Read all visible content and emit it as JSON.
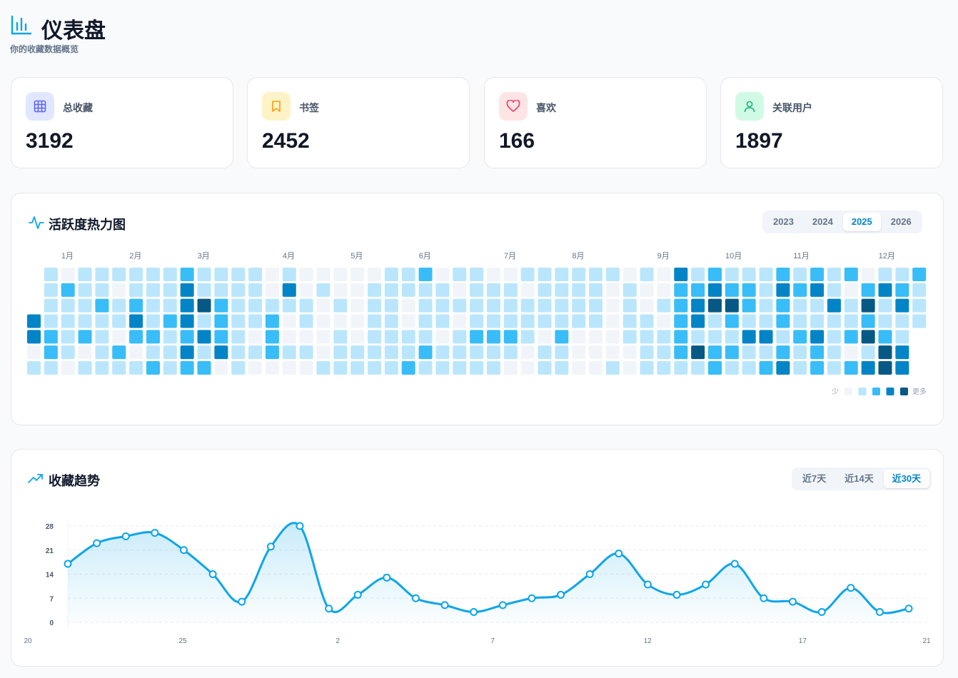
{
  "header": {
    "title": "仪表盘",
    "subtitle": "你的收藏数据概览"
  },
  "stats": [
    {
      "label": "总收藏",
      "value": 3192
    },
    {
      "label": "书签",
      "value": 2452
    },
    {
      "label": "喜欢",
      "value": 166
    },
    {
      "label": "关联用户",
      "value": 1897
    }
  ],
  "heatmap": {
    "title": "活跃度热力图",
    "years": [
      "2023",
      "2024",
      "2025",
      "2026"
    ],
    "active": 2,
    "months": [
      "1月",
      "2月",
      "3月",
      "4月",
      "5月",
      "6月",
      "7月",
      "8月",
      "9月",
      "10月",
      "11月",
      "12月"
    ],
    "colors": [
      "#f1f5f9",
      "#bae6fd",
      "#38bdf8",
      "#0284c7",
      "#075985"
    ],
    "rows": [
      [
        null,
        1,
        0,
        1,
        1,
        1,
        1,
        1,
        1,
        2,
        1,
        1,
        1,
        1,
        0,
        1,
        0,
        0,
        0,
        0,
        0,
        1,
        1,
        2,
        0,
        1,
        1,
        0,
        0,
        1,
        1,
        1,
        1,
        1,
        1,
        0,
        1,
        0,
        3,
        1,
        2,
        1,
        1,
        1,
        2,
        1,
        2,
        1,
        2,
        0,
        1,
        1,
        2
      ],
      [
        null,
        1,
        2,
        1,
        1,
        0,
        1,
        1,
        1,
        3,
        1,
        1,
        1,
        1,
        0,
        3,
        0,
        1,
        0,
        0,
        1,
        1,
        1,
        1,
        1,
        0,
        1,
        1,
        1,
        0,
        1,
        1,
        1,
        1,
        0,
        1,
        0,
        0,
        2,
        2,
        3,
        2,
        2,
        1,
        3,
        2,
        3,
        1,
        0,
        2,
        3,
        2,
        1
      ],
      [
        null,
        1,
        1,
        1,
        2,
        1,
        2,
        1,
        1,
        3,
        4,
        2,
        1,
        1,
        1,
        1,
        1,
        0,
        1,
        0,
        1,
        1,
        0,
        1,
        1,
        1,
        1,
        1,
        1,
        1,
        1,
        1,
        1,
        1,
        0,
        1,
        0,
        1,
        2,
        3,
        4,
        4,
        2,
        1,
        2,
        1,
        1,
        3,
        1,
        4,
        1,
        3,
        1
      ],
      [
        3,
        1,
        1,
        1,
        1,
        1,
        3,
        1,
        2,
        3,
        1,
        2,
        1,
        1,
        2,
        0,
        1,
        0,
        0,
        0,
        1,
        1,
        0,
        1,
        1,
        0,
        1,
        1,
        1,
        1,
        1,
        1,
        1,
        1,
        0,
        1,
        1,
        0,
        2,
        3,
        1,
        2,
        1,
        1,
        2,
        1,
        1,
        1,
        1,
        2,
        1,
        1,
        1
      ],
      [
        3,
        2,
        1,
        2,
        1,
        0,
        2,
        2,
        1,
        2,
        3,
        2,
        1,
        0,
        2,
        0,
        0,
        0,
        1,
        0,
        1,
        1,
        1,
        1,
        0,
        1,
        2,
        2,
        2,
        1,
        0,
        2,
        0,
        0,
        0,
        1,
        1,
        1,
        2,
        1,
        1,
        1,
        3,
        3,
        1,
        2,
        3,
        1,
        2,
        4,
        2,
        1,
        null
      ],
      [
        0,
        2,
        1,
        0,
        1,
        2,
        0,
        1,
        1,
        3,
        1,
        3,
        1,
        1,
        2,
        1,
        1,
        0,
        1,
        1,
        1,
        1,
        1,
        2,
        1,
        1,
        1,
        1,
        1,
        0,
        1,
        1,
        0,
        0,
        0,
        0,
        1,
        1,
        2,
        4,
        2,
        2,
        1,
        1,
        2,
        1,
        2,
        1,
        0,
        1,
        4,
        3,
        null
      ],
      [
        1,
        1,
        0,
        1,
        1,
        1,
        1,
        2,
        1,
        2,
        2,
        0,
        1,
        0,
        0,
        0,
        0,
        1,
        1,
        1,
        1,
        1,
        2,
        1,
        1,
        1,
        1,
        1,
        0,
        0,
        1,
        1,
        0,
        0,
        1,
        0,
        1,
        1,
        1,
        1,
        2,
        1,
        1,
        2,
        3,
        1,
        2,
        1,
        2,
        3,
        4,
        3,
        null
      ]
    ],
    "legend": {
      "less": "少",
      "more": "更多"
    }
  },
  "chart_data": {
    "type": "line",
    "title": "收藏趋势",
    "ranges": [
      "近7天",
      "近14天",
      "近30天"
    ],
    "active": 2,
    "categories": [
      "20",
      null,
      null,
      null,
      null,
      "25",
      null,
      null,
      null,
      null,
      "2",
      null,
      null,
      null,
      null,
      "7",
      null,
      null,
      null,
      null,
      "12",
      null,
      null,
      null,
      null,
      "17",
      null,
      null,
      null,
      "21"
    ],
    "values": [
      17,
      23,
      25,
      26,
      21,
      14,
      6,
      22,
      28,
      4,
      8,
      13,
      7,
      5,
      3,
      5,
      7,
      8,
      14,
      20,
      11,
      8,
      11,
      17,
      7,
      6,
      3,
      10,
      3,
      4
    ],
    "color": "#0ea5e9",
    "ylim": [
      0,
      28
    ],
    "yticks": [
      0,
      7,
      14,
      21,
      28
    ],
    "grid": true
  }
}
